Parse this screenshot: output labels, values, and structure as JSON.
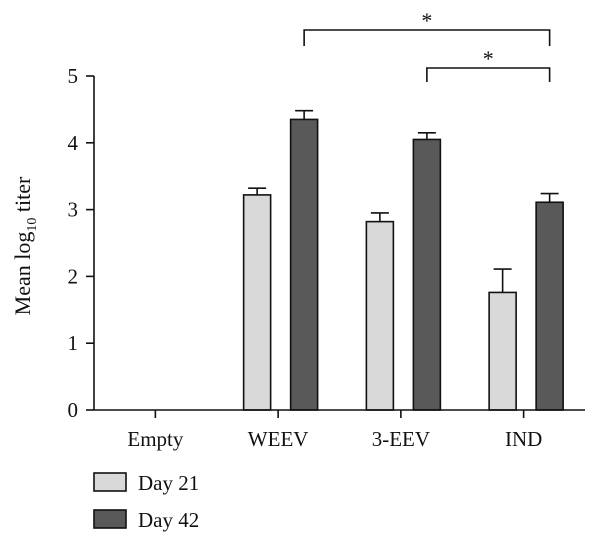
{
  "chart_data": {
    "type": "bar",
    "title": "",
    "xlabel": "",
    "ylabel": {
      "prefix": "Mean log",
      "subscript": "10",
      "suffix": " titer"
    },
    "ylim": [
      0,
      5
    ],
    "yticks": [
      "0",
      "1",
      "2",
      "3",
      "4",
      "5"
    ],
    "categories": [
      "Empty",
      "WEEV",
      "3-EEV",
      "IND"
    ],
    "series": [
      {
        "name": "Day 21",
        "color": "#d9d9d9",
        "values": [
          0,
          3.22,
          2.82,
          1.76
        ],
        "errors": [
          0,
          0.1,
          0.13,
          0.35
        ]
      },
      {
        "name": "Day 42",
        "color": "#595959",
        "values": [
          0,
          4.35,
          4.05,
          3.11
        ],
        "errors": [
          0,
          0.13,
          0.1,
          0.13
        ]
      }
    ],
    "legend": {
      "placement": "bottom-left"
    },
    "grid": false,
    "significance": [
      {
        "from_category": "WEEV",
        "to_category": "IND",
        "label": "*"
      },
      {
        "from_category": "3-EEV",
        "to_category": "IND",
        "label": "*"
      }
    ]
  }
}
